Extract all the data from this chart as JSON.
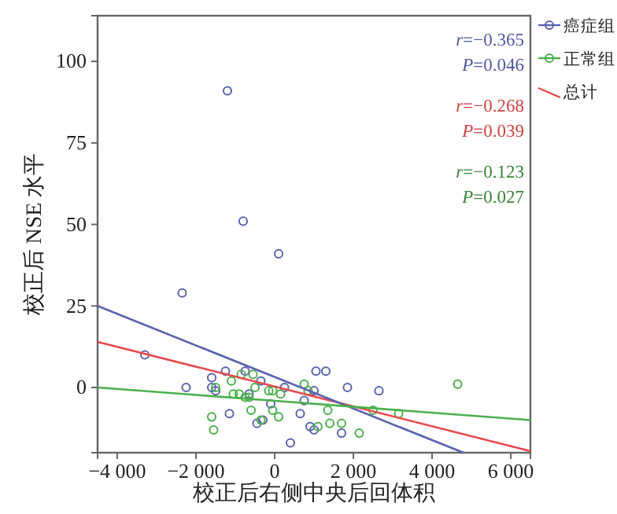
{
  "chart_data": {
    "type": "scatter",
    "xlabel": "校正后右侧中央后回体积",
    "ylabel": "校正后 NSE 水平",
    "xlim": [
      -4500,
      6500
    ],
    "ylim": [
      -20,
      114
    ],
    "xticks": [
      {
        "value": -4000,
        "label": "−4 000"
      },
      {
        "value": -2000,
        "label": "−2 000"
      },
      0,
      {
        "value": 2000,
        "label": "2 000"
      },
      {
        "value": 4000,
        "label": "4 000"
      },
      {
        "value": 6000,
        "label": "6 000"
      }
    ],
    "yticks": [
      0,
      25,
      50,
      75,
      100
    ],
    "grid": false,
    "legend": "top right",
    "annotations": [
      "r=−0.365",
      "P=0.046",
      "r=−0.268",
      "P=0.039",
      "r=−0.123",
      "P=0.027"
    ],
    "series": [
      {
        "name": "癌症组",
        "marker": "circle",
        "color": "#5a63b0",
        "x": [
          -1200,
          -800,
          100,
          -2350,
          -3300,
          -2250,
          -1600,
          -1600,
          -1500,
          -1250,
          -1150,
          -750,
          -650,
          -350,
          -450,
          -300,
          -100,
          250,
          400,
          650,
          750,
          900,
          1000,
          1000,
          1050,
          1300,
          1700,
          1850,
          2650
        ],
        "values": [
          91,
          51,
          41,
          29,
          10,
          0,
          3,
          0,
          -1,
          5,
          -8,
          5,
          -2,
          2,
          -11,
          -10,
          -5,
          0,
          -17,
          -8,
          -4,
          -12,
          -1,
          -13,
          5,
          5,
          -14,
          0,
          -1
        ]
      },
      {
        "name": "正常组",
        "marker": "circle",
        "color": "#4cb04c",
        "x": [
          750,
          -1500,
          -1600,
          -1550,
          -1100,
          -1050,
          -900,
          -850,
          -750,
          -650,
          -550,
          -600,
          -500,
          -350,
          -150,
          -50,
          -50,
          100,
          150,
          850,
          1100,
          1350,
          1400,
          1700,
          2150,
          2500,
          3150,
          4650
        ],
        "values": [
          1,
          0,
          -9,
          -13,
          2,
          -2,
          -2,
          4,
          -3,
          -3,
          4,
          -7,
          0,
          -10,
          -1,
          -1,
          -7,
          -9,
          -2,
          -1,
          -12,
          -7,
          -11,
          -11,
          -14,
          -7,
          -8,
          1
        ]
      },
      {
        "name": "总计",
        "type": "line",
        "marker": "none",
        "color": "#e84848",
        "x": [
          -4500,
          6500
        ],
        "values": [
          14,
          -19.5
        ]
      },
      {
        "type": "line",
        "marker": "none",
        "color": "#5a63b0",
        "x": [
          -4500,
          4800
        ],
        "values": [
          25,
          -20
        ]
      },
      {
        "type": "line",
        "marker": "none",
        "color": "#4cb04c",
        "x": [
          -4500,
          6500
        ],
        "values": [
          0,
          -10
        ]
      }
    ]
  }
}
